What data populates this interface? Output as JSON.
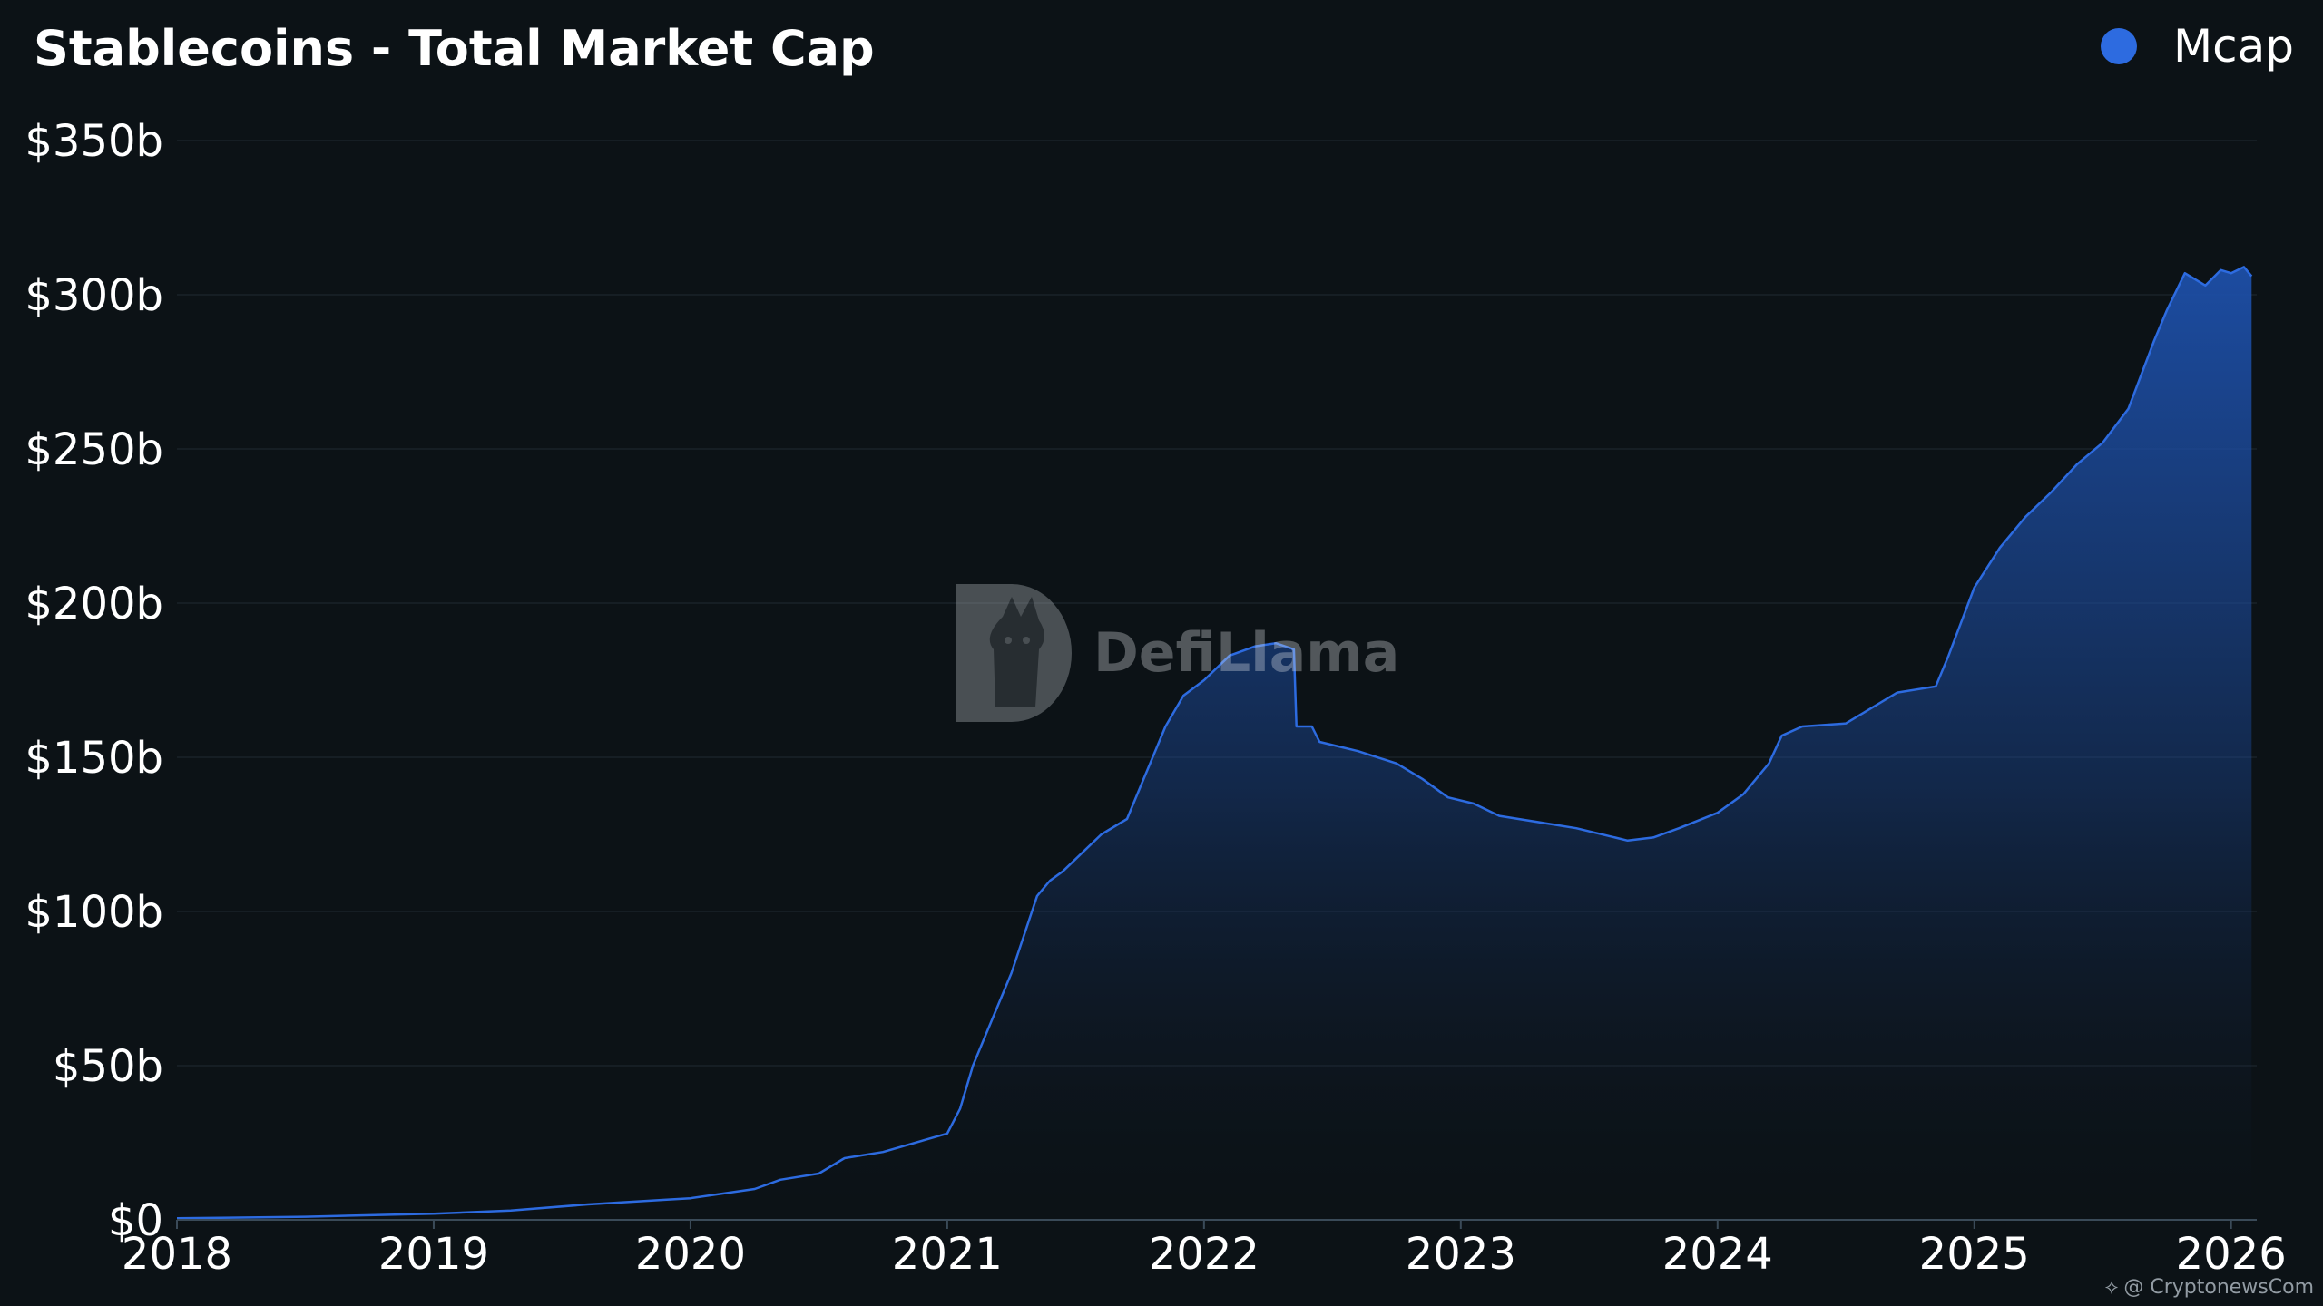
{
  "chart_data": {
    "type": "area",
    "title": "Stablecoins - Total Market Cap",
    "xlabel": "",
    "ylabel": "",
    "xlim": [
      2018.0,
      2026.1
    ],
    "ylim": [
      0,
      350
    ],
    "y_unit": "billion USD",
    "grid": true,
    "legend_position": "top-right",
    "x_ticks": [
      2018,
      2019,
      2020,
      2021,
      2022,
      2023,
      2024,
      2025,
      2026
    ],
    "x_tick_labels": [
      "2018",
      "2019",
      "2020",
      "2021",
      "2022",
      "2023",
      "2024",
      "2025",
      "2026"
    ],
    "y_ticks": [
      0,
      50,
      100,
      150,
      200,
      250,
      300,
      350
    ],
    "y_tick_labels": [
      "$0",
      "$50b",
      "$100b",
      "$150b",
      "$200b",
      "$250b",
      "$300b",
      "$350b"
    ],
    "series": [
      {
        "name": "Mcap",
        "color": "#2d6be0",
        "x": [
          2018.0,
          2018.5,
          2019.0,
          2019.3,
          2019.6,
          2019.9,
          2020.0,
          2020.25,
          2020.35,
          2020.5,
          2020.6,
          2020.75,
          2021.0,
          2021.05,
          2021.1,
          2021.15,
          2021.25,
          2021.35,
          2021.4,
          2021.45,
          2021.5,
          2021.6,
          2021.7,
          2021.75,
          2021.85,
          2021.92,
          2022.0,
          2022.1,
          2022.2,
          2022.28,
          2022.35,
          2022.36,
          2022.42,
          2022.45,
          2022.6,
          2022.75,
          2022.85,
          2022.95,
          2023.05,
          2023.15,
          2023.3,
          2023.45,
          2023.6,
          2023.65,
          2023.75,
          2023.85,
          2024.0,
          2024.1,
          2024.2,
          2024.25,
          2024.33,
          2024.5,
          2024.6,
          2024.7,
          2024.85,
          2024.9,
          2025.0,
          2025.1,
          2025.2,
          2025.3,
          2025.4,
          2025.5,
          2025.6,
          2025.7,
          2025.75,
          2025.82,
          2025.9,
          2025.96,
          2026.0,
          2026.05,
          2026.08
        ],
        "values": [
          0.5,
          1.0,
          2.0,
          3.0,
          5.0,
          6.5,
          7.0,
          10.0,
          13.0,
          15.0,
          20.0,
          22.0,
          28.0,
          36.0,
          50.0,
          60.0,
          80.0,
          105.0,
          110.0,
          113.0,
          117.0,
          125.0,
          130.0,
          140.0,
          160.0,
          170.0,
          175.0,
          183.0,
          186.0,
          187.0,
          185.0,
          160.0,
          160.0,
          155.0,
          152.0,
          148.0,
          143.0,
          137.0,
          135.0,
          131.0,
          129.0,
          127.0,
          124.0,
          123.0,
          124.0,
          127.0,
          132.0,
          138.0,
          148.0,
          157.0,
          160.0,
          161.0,
          166.0,
          171.0,
          173.0,
          183.0,
          205.0,
          218.0,
          228.0,
          236.0,
          245.0,
          252.0,
          263.0,
          285.0,
          295.0,
          307.0,
          303.0,
          308.0,
          307.0,
          309.0,
          306.0
        ]
      }
    ]
  },
  "watermark": {
    "source_logo_text": "DefiLlama",
    "credit_text": "@ CryptonewsCom"
  },
  "colors": {
    "background": "#0c1216",
    "series": "#2d6be0",
    "area_top": "#1d4fa8",
    "grid": "#1a2228",
    "axis": "#3a4a58"
  }
}
